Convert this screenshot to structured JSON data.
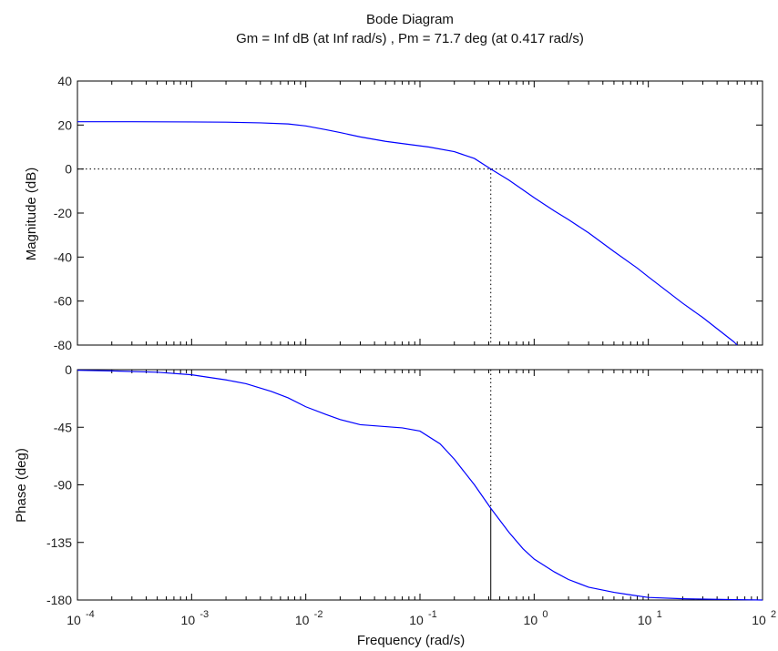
{
  "chart_data": {
    "type": "line",
    "title": "Bode Diagram",
    "subtitle": "Gm = Inf dB (at Inf rad/s) ,  Pm = 71.7 deg (at 0.417 rad/s)",
    "xlabel": "Frequency  (rad/s)",
    "xscale": "log",
    "xlim": [
      0.0001,
      100
    ],
    "x_ticks": [
      {
        "base": "10",
        "exp": "-4"
      },
      {
        "base": "10",
        "exp": "-3"
      },
      {
        "base": "10",
        "exp": "-2"
      },
      {
        "base": "10",
        "exp": "-1"
      },
      {
        "base": "10",
        "exp": "0"
      },
      {
        "base": "10",
        "exp": "1"
      },
      {
        "base": "10",
        "exp": "2"
      }
    ],
    "line_color": "#0000ff",
    "crossover_frequency": 0.417,
    "magnitude": {
      "ylabel": "Magnitude (dB)",
      "ylim": [
        -80,
        40
      ],
      "y_ticks": [
        "40",
        "20",
        "0",
        "-20",
        "-40",
        "-60",
        "-80"
      ],
      "zero_db_line": 0,
      "x": [
        0.0001,
        0.0003,
        0.001,
        0.002,
        0.004,
        0.007,
        0.01,
        0.015,
        0.02,
        0.03,
        0.05,
        0.08,
        0.12,
        0.2,
        0.3,
        0.417,
        0.6,
        0.8,
        1.0,
        1.5,
        2,
        3,
        5,
        8,
        10,
        20,
        30,
        56,
        60
      ],
      "y": [
        21.5,
        21.5,
        21.4,
        21.3,
        21.0,
        20.5,
        19.6,
        17.9,
        16.6,
        14.6,
        12.6,
        11.2,
        10.0,
        7.9,
        4.8,
        0.0,
        -5.0,
        -9.5,
        -13.0,
        -19.0,
        -23.0,
        -29.0,
        -37.5,
        -45.0,
        -49.0,
        -61.0,
        -67.5,
        -78.5,
        -80
      ]
    },
    "phase": {
      "ylabel": "Phase (deg)",
      "ylim": [
        -180,
        0
      ],
      "y_ticks": [
        "0",
        "-45",
        "-90",
        "-135",
        "-180"
      ],
      "reference_line": -180,
      "phase_at_crossover": -108.3,
      "x": [
        0.0001,
        0.0002,
        0.0005,
        0.001,
        0.002,
        0.003,
        0.005,
        0.007,
        0.01,
        0.015,
        0.02,
        0.03,
        0.05,
        0.07,
        0.1,
        0.15,
        0.2,
        0.3,
        0.417,
        0.6,
        0.8,
        1,
        1.5,
        2,
        3,
        5,
        7,
        10,
        20,
        30,
        50,
        100
      ],
      "y": [
        -0.5,
        -1,
        -2,
        -4,
        -8,
        -11,
        -17,
        -22,
        -29,
        -35,
        -39,
        -43,
        -44.5,
        -45.5,
        -48,
        -58,
        -70,
        -90,
        -108.3,
        -127,
        -140,
        -148,
        -158,
        -164,
        -170,
        -174,
        -176,
        -178,
        -179,
        -179.3,
        -179.6,
        -180
      ]
    }
  }
}
